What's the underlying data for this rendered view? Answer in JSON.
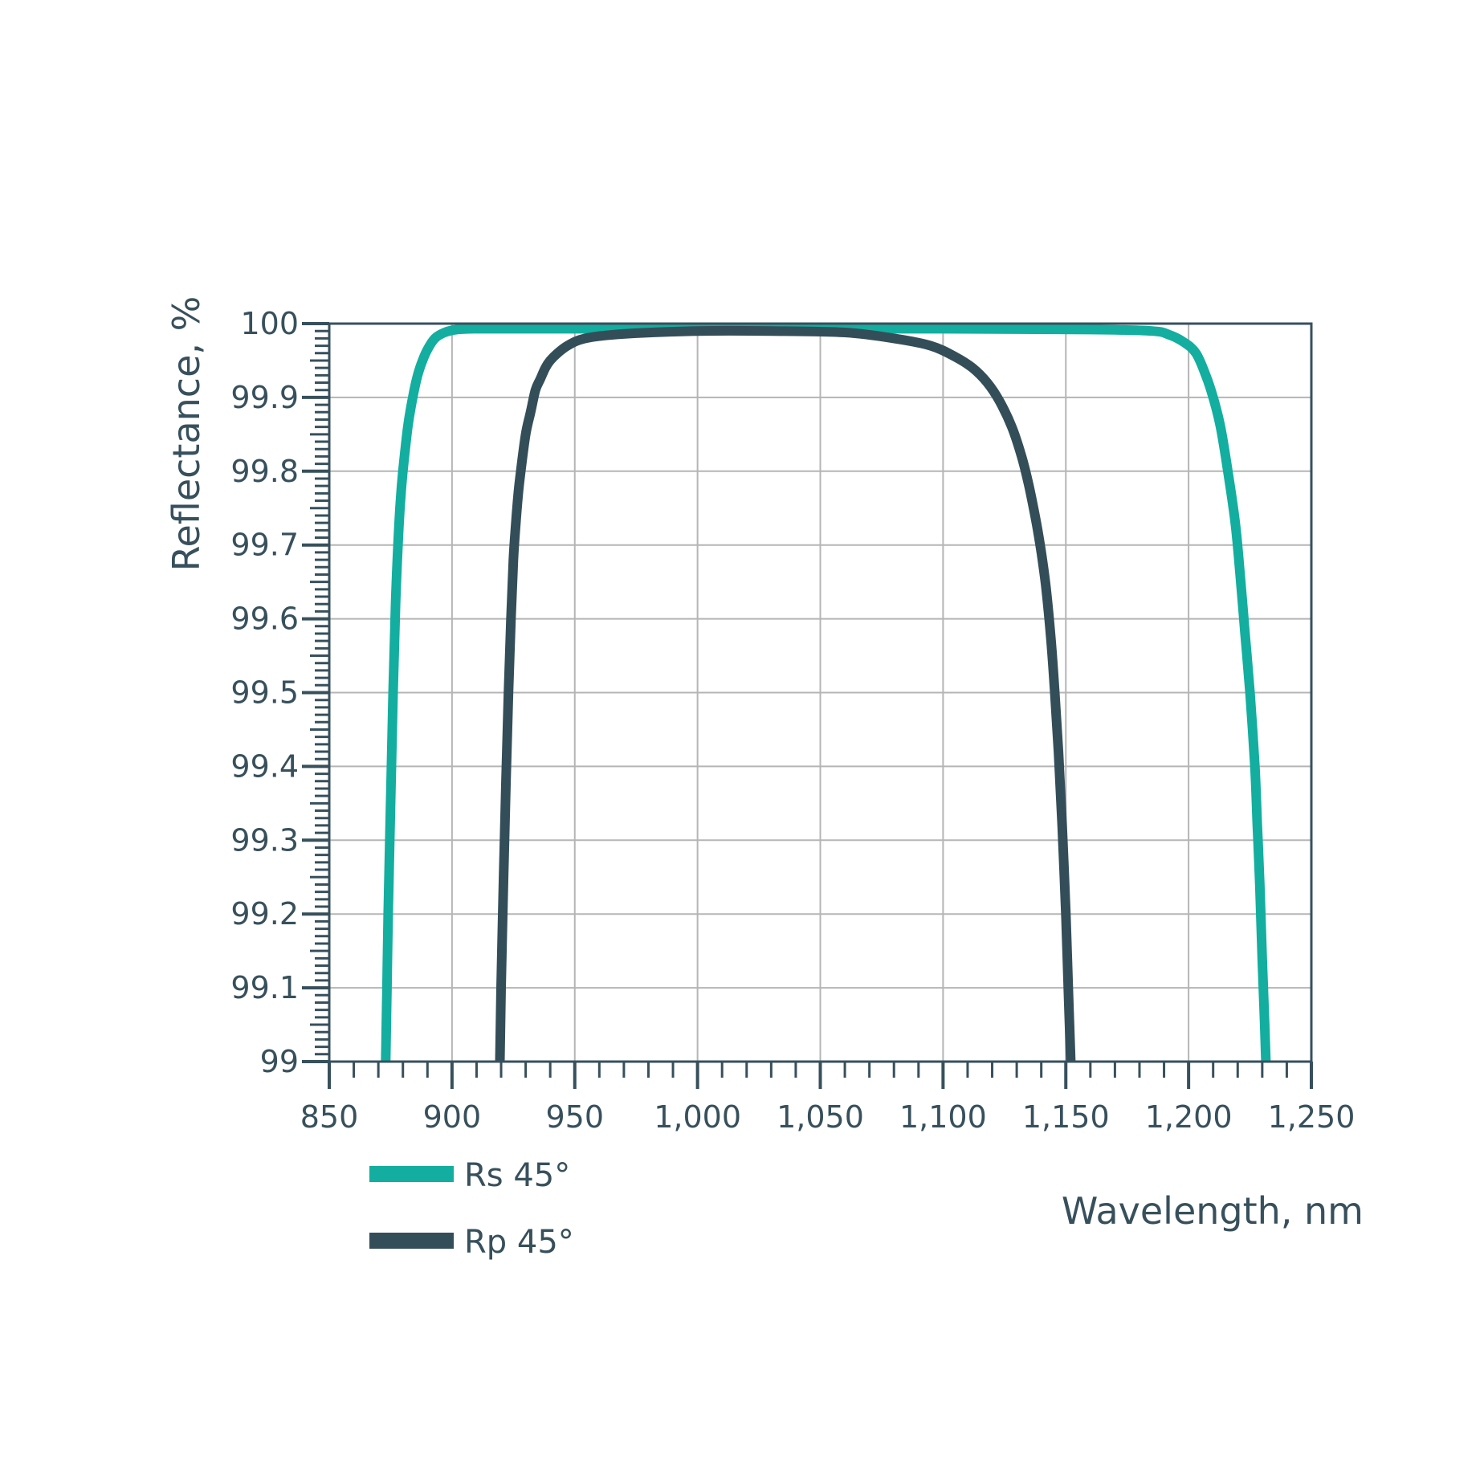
{
  "chart_data": {
    "type": "line",
    "title": "",
    "xlabel": "Wavelength, nm",
    "ylabel": "Reflectance, %",
    "xlim": [
      850,
      1250
    ],
    "ylim": [
      99,
      100
    ],
    "x_ticks": [
      850,
      900,
      950,
      1000,
      1050,
      1100,
      1150,
      1200,
      1250
    ],
    "x_tick_labels": [
      "850",
      "900",
      "950",
      "1,000",
      "1,050",
      "1,100",
      "1,150",
      "1,200",
      "1,250"
    ],
    "y_ticks": [
      99,
      99.1,
      99.2,
      99.3,
      99.4,
      99.5,
      99.6,
      99.7,
      99.8,
      99.9,
      100
    ],
    "y_tick_labels": [
      "99",
      "99.1",
      "99.2",
      "99.3",
      "99.4",
      "99.5",
      "99.6",
      "99.7",
      "99.8",
      "99.9",
      "100"
    ],
    "grid": true,
    "legend_position": "bottom-left",
    "series": [
      {
        "name": "Rs 45°",
        "color": "#13ae9f",
        "x": [
          873,
          873.5,
          874,
          875,
          876,
          877,
          878,
          879,
          880,
          882,
          884,
          886,
          888,
          890,
          893,
          897,
          902,
          910,
          930,
          1000,
          1100,
          1160,
          1185,
          1192,
          1198,
          1203,
          1207,
          1210,
          1213,
          1216,
          1219,
          1221,
          1223,
          1225,
          1227,
          1228,
          1229,
          1230,
          1231,
          1231.5
        ],
        "y": [
          99.0,
          99.1,
          99.2,
          99.35,
          99.5,
          99.62,
          99.7,
          99.76,
          99.8,
          99.86,
          99.9,
          99.93,
          99.95,
          99.965,
          99.98,
          99.988,
          99.992,
          99.993,
          99.993,
          99.993,
          99.993,
          99.992,
          99.99,
          99.985,
          99.975,
          99.96,
          99.93,
          99.9,
          99.86,
          99.8,
          99.73,
          99.66,
          99.58,
          99.5,
          99.4,
          99.32,
          99.24,
          99.14,
          99.05,
          99.0
        ]
      },
      {
        "name": "Rp 45°",
        "color": "#344e59",
        "x": [
          919.5,
          920,
          921,
          922,
          923,
          924,
          925,
          926,
          927,
          928,
          930,
          932,
          934,
          936,
          938,
          940,
          943,
          947,
          952,
          960,
          975,
          1000,
          1030,
          1060,
          1080,
          1095,
          1105,
          1112,
          1118,
          1123,
          1128,
          1132,
          1135,
          1138,
          1140,
          1142,
          1144,
          1145.5,
          1147,
          1148.5,
          1150,
          1151,
          1152
        ],
        "y": [
          99.0,
          99.1,
          99.25,
          99.38,
          99.5,
          99.6,
          99.68,
          99.73,
          99.77,
          99.8,
          99.85,
          99.88,
          99.91,
          99.925,
          99.94,
          99.95,
          99.96,
          99.97,
          99.978,
          99.983,
          99.987,
          99.99,
          99.99,
          99.988,
          99.98,
          99.97,
          99.955,
          99.94,
          99.92,
          99.895,
          99.86,
          99.82,
          99.78,
          99.73,
          99.69,
          99.64,
          99.57,
          99.5,
          99.42,
          99.32,
          99.2,
          99.1,
          99.0
        ]
      }
    ]
  }
}
